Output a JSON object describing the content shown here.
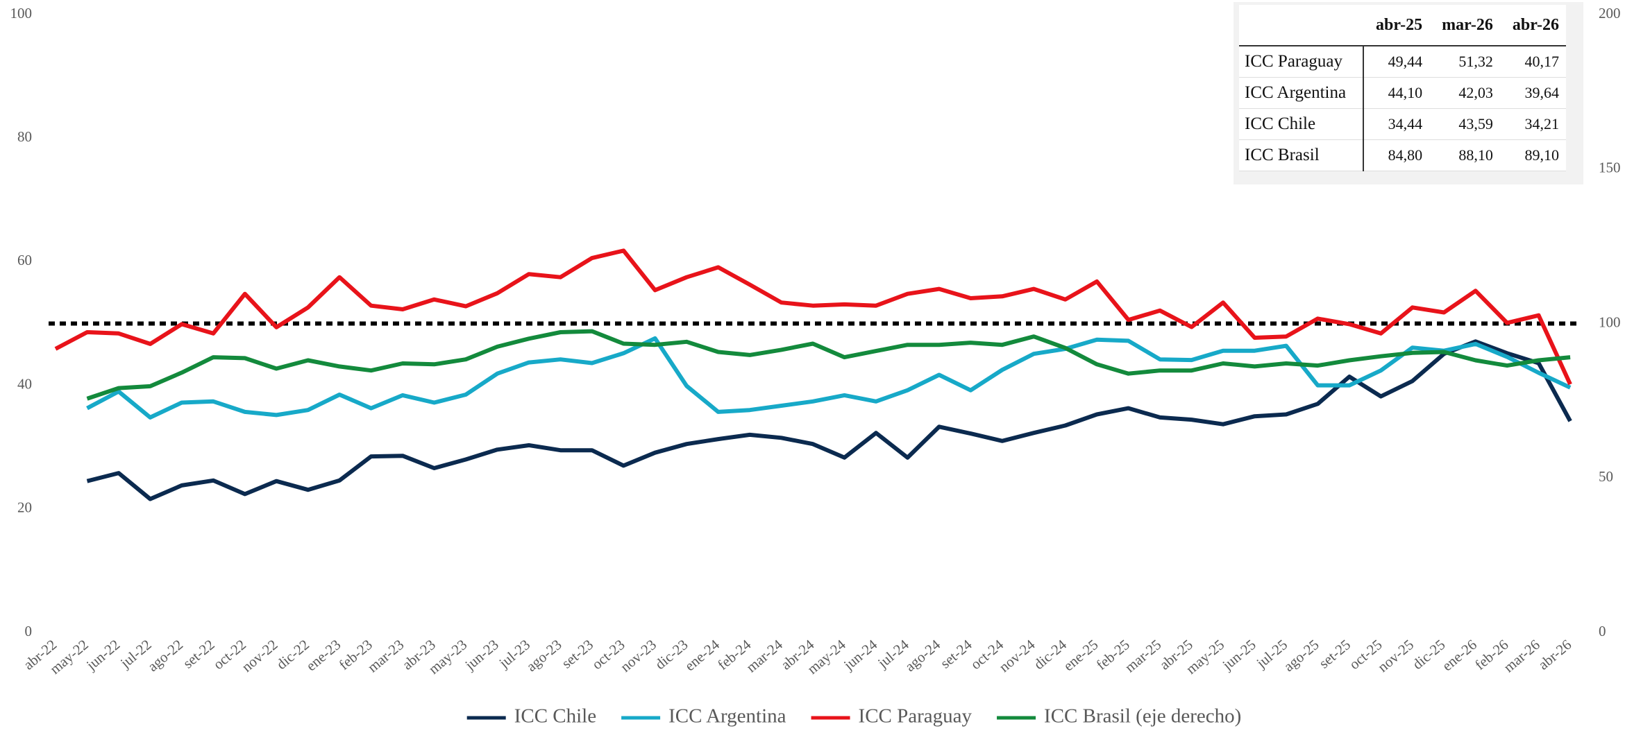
{
  "chart_data": {
    "type": "line",
    "categories": [
      "abr-22",
      "may-22",
      "jun-22",
      "jul-22",
      "ago-22",
      "set-22",
      "oct-22",
      "nov-22",
      "dic-22",
      "ene-23",
      "feb-23",
      "mar-23",
      "abr-23",
      "may-23",
      "jun-23",
      "jul-23",
      "ago-23",
      "set-23",
      "oct-23",
      "nov-23",
      "dic-23",
      "ene-24",
      "feb-24",
      "mar-24",
      "abr-24",
      "may-24",
      "jun-24",
      "jul-24",
      "ago-24",
      "set-24",
      "oct-24",
      "nov-24",
      "dic-24",
      "ene-25",
      "feb-25",
      "mar-25",
      "abr-25",
      "may-25",
      "jun-25",
      "jul-25",
      "ago-25",
      "set-25",
      "oct-25",
      "nov-25",
      "dic-25",
      "ene-26",
      "feb-26",
      "mar-26",
      "abr-26"
    ],
    "series": [
      {
        "name": "ICC Chile",
        "color": "#0b2a4f",
        "values": [
          null,
          24.5,
          25.8,
          21.6,
          23.8,
          24.6,
          22.4,
          24.5,
          23.1,
          24.6,
          28.5,
          28.6,
          26.6,
          28.0,
          29.6,
          30.3,
          29.5,
          29.5,
          27.0,
          29.1,
          30.5,
          31.3,
          32.0,
          31.5,
          30.5,
          28.3,
          32.3,
          28.3,
          33.3,
          32.2,
          31.0,
          32.3,
          33.5,
          35.3,
          36.3,
          34.8,
          34.44,
          33.7,
          35.0,
          35.3,
          37.0,
          41.4,
          38.2,
          40.7,
          45.1,
          47.1,
          45.2,
          43.59,
          34.21
        ]
      },
      {
        "name": "ICC Argentina",
        "color": "#17a9c8",
        "values": [
          null,
          36.3,
          39.0,
          34.8,
          37.2,
          37.4,
          35.7,
          35.2,
          36.0,
          38.5,
          36.3,
          38.4,
          37.2,
          38.5,
          41.9,
          43.7,
          44.2,
          43.6,
          45.2,
          47.6,
          39.9,
          35.7,
          36.0,
          36.7,
          37.4,
          38.4,
          37.4,
          39.2,
          41.7,
          39.2,
          42.5,
          45.1,
          45.9,
          47.4,
          47.2,
          44.2,
          44.1,
          45.6,
          45.6,
          46.4,
          40.0,
          40.0,
          42.4,
          46.1,
          45.6,
          46.7,
          44.6,
          42.03,
          39.64
        ]
      },
      {
        "name": "ICC Paraguay",
        "color": "#e8131a",
        "values": [
          45.9,
          48.6,
          48.4,
          46.7,
          49.9,
          48.4,
          54.8,
          49.4,
          52.6,
          57.5,
          52.9,
          52.3,
          53.9,
          52.8,
          54.9,
          58.0,
          57.5,
          60.6,
          61.8,
          55.4,
          57.5,
          59.1,
          56.3,
          53.4,
          52.9,
          53.1,
          52.9,
          54.8,
          55.6,
          54.1,
          54.4,
          55.6,
          53.9,
          56.8,
          50.6,
          52.1,
          49.44,
          53.4,
          47.7,
          47.9,
          50.8,
          49.9,
          48.4,
          52.6,
          51.8,
          55.3,
          50.1,
          51.32,
          40.17
        ]
      },
      {
        "name": "ICC Brasil (eje derecho)",
        "color": "#138a3c",
        "axis": "y2",
        "values": [
          null,
          75.7,
          79.1,
          79.7,
          84.1,
          89.1,
          88.8,
          85.4,
          88.1,
          86.1,
          84.8,
          87.1,
          86.8,
          88.4,
          92.5,
          95.1,
          97.2,
          97.5,
          93.5,
          93.1,
          94.1,
          90.8,
          89.8,
          91.5,
          93.5,
          89.1,
          91.1,
          93.1,
          93.1,
          93.8,
          93.1,
          95.8,
          92.1,
          86.8,
          83.8,
          84.8,
          84.8,
          87.1,
          86.1,
          87.1,
          86.4,
          88.1,
          89.4,
          90.5,
          90.8,
          88.1,
          86.4,
          88.1,
          89.1
        ]
      }
    ],
    "reference_line": 50,
    "ylim": [
      0,
      100
    ],
    "yticks": [
      0,
      20,
      40,
      60,
      80,
      100
    ],
    "y2lim": [
      0,
      200
    ],
    "y2ticks": [
      0,
      50,
      100,
      150,
      200
    ],
    "legend": "bottom"
  },
  "table": {
    "columns": [
      "abr-25",
      "mar-26",
      "abr-26"
    ],
    "rows": [
      {
        "label": "ICC Paraguay",
        "values": [
          "49,44",
          "51,32",
          "40,17"
        ]
      },
      {
        "label": "ICC Argentina",
        "values": [
          "44,10",
          "42,03",
          "39,64"
        ]
      },
      {
        "label": "ICC Chile",
        "values": [
          "34,44",
          "43,59",
          "34,21"
        ]
      },
      {
        "label": "ICC Brasil",
        "values": [
          "84,80",
          "88,10",
          "89,10"
        ]
      }
    ]
  }
}
